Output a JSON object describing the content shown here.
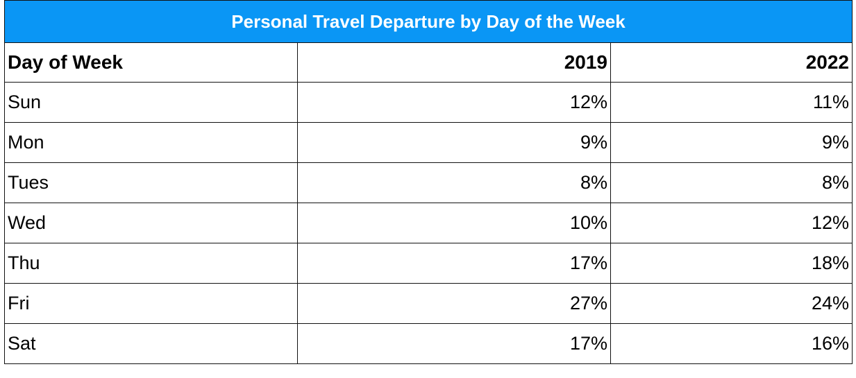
{
  "colors": {
    "title_bg": "#0a96f5",
    "title_text": "#ffffff",
    "border": "#111111"
  },
  "chart_data": {
    "type": "table",
    "title": "Personal Travel Departure by Day of the Week",
    "columns": [
      "Day of Week",
      "2019",
      "2022"
    ],
    "rows": [
      [
        "Sun",
        "12%",
        "11%"
      ],
      [
        "Mon",
        "9%",
        "9%"
      ],
      [
        "Tues",
        "8%",
        "8%"
      ],
      [
        "Wed",
        "10%",
        "12%"
      ],
      [
        "Thu",
        "17%",
        "18%"
      ],
      [
        "Fri",
        "27%",
        "24%"
      ],
      [
        "Sat",
        "17%",
        "16%"
      ]
    ]
  }
}
